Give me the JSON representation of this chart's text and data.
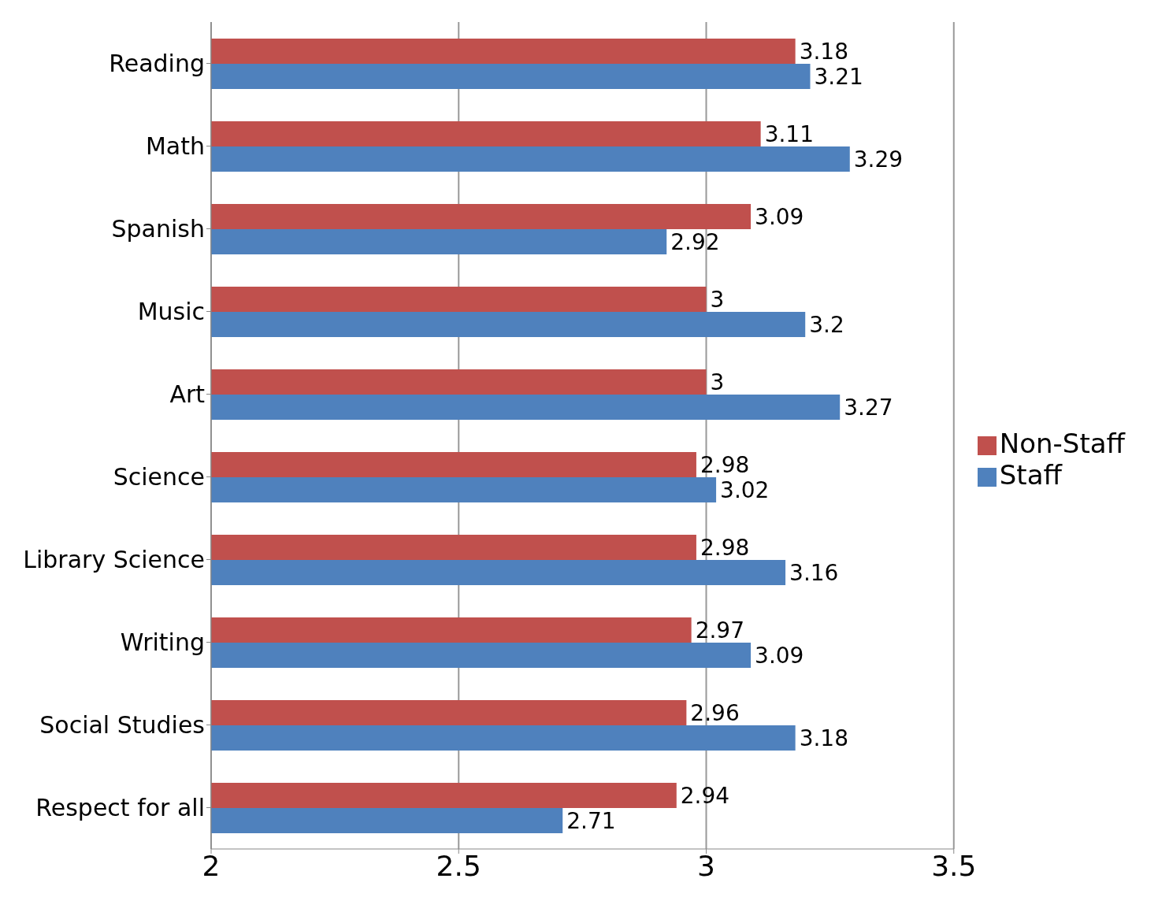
{
  "chart_data": {
    "type": "bar",
    "orientation": "horizontal",
    "categories": [
      "Reading",
      "Math",
      "Spanish",
      "Music",
      "Art",
      "Science",
      "Library Science",
      "Writing",
      "Social Studies",
      "Respect for all"
    ],
    "series": [
      {
        "name": "Non-Staff",
        "color": "#c0504d",
        "values": [
          3.18,
          3.11,
          3.09,
          3,
          3,
          2.98,
          2.98,
          2.97,
          2.96,
          2.94
        ]
      },
      {
        "name": "Staff",
        "color": "#4f81bd",
        "values": [
          3.21,
          3.29,
          2.92,
          3.2,
          3.27,
          3.02,
          3.16,
          3.09,
          3.18,
          2.71
        ]
      }
    ],
    "xlim": [
      2,
      3.5
    ],
    "xticks": [
      2,
      2.5,
      3,
      3.5
    ],
    "grid": "x",
    "legend": "right",
    "data_labels": true
  }
}
